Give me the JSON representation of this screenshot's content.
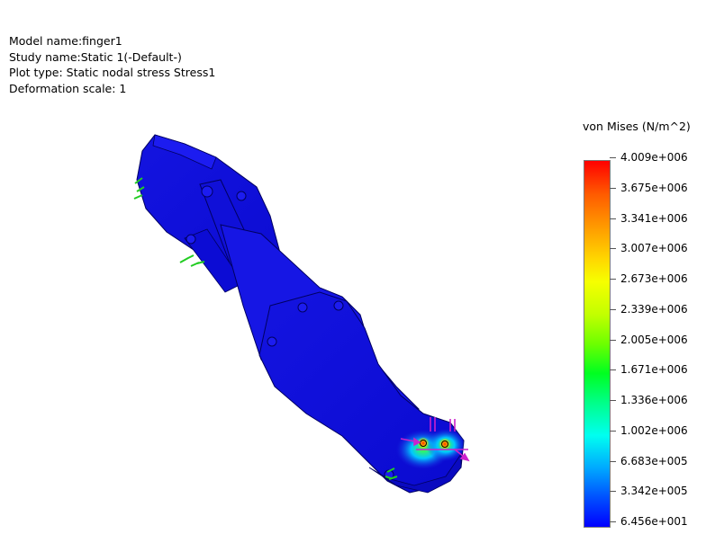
{
  "study_info": {
    "model_name": "Model name:finger1",
    "study_name": "Study name:Static 1(-Default-)",
    "plot_type": "Plot type: Static nodal stress Stress1",
    "deformation_scale": "Deformation scale: 1"
  },
  "legend": {
    "title": "von Mises (N/m^2)",
    "ticks": [
      "4.009e+006",
      "3.675e+006",
      "3.341e+006",
      "3.007e+006",
      "2.673e+006",
      "2.339e+006",
      "2.005e+006",
      "1.671e+006",
      "1.336e+006",
      "1.002e+006",
      "6.683e+005",
      "3.342e+005",
      "6.456e+001"
    ],
    "colors": {
      "max": "#ff0000",
      "mid": "#6dff00",
      "min": "#0000ff"
    }
  },
  "model": {
    "name": "finger1",
    "primary_color": "#1a1ae6",
    "fixture_color": "#22cc22",
    "load_color": "#cc22cc"
  }
}
